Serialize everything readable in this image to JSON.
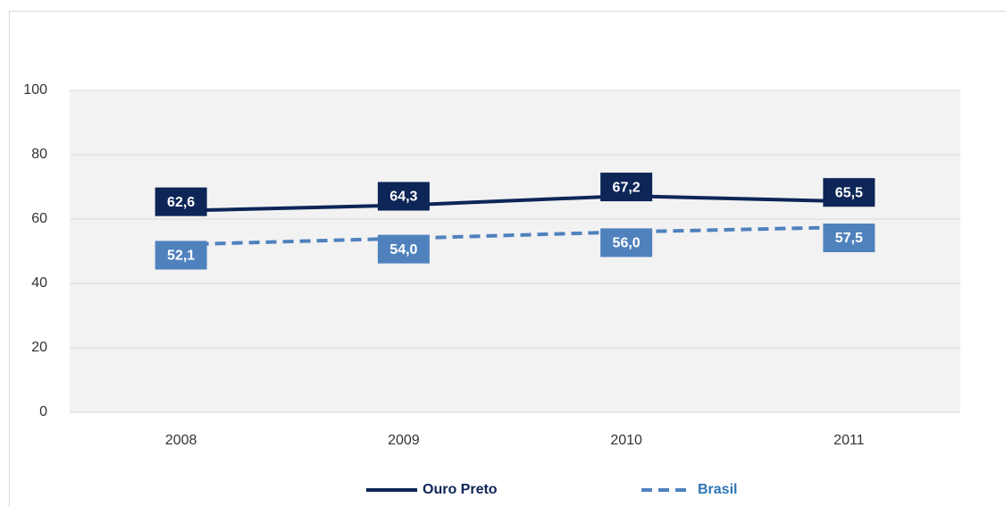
{
  "chart_data": {
    "type": "line",
    "categories": [
      "2008",
      "2009",
      "2010",
      "2011"
    ],
    "series": [
      {
        "name": "Ouro Preto",
        "color": "#0d2557",
        "dash": false,
        "values": [
          62.6,
          64.3,
          67.2,
          65.5
        ],
        "value_labels": [
          "62,6",
          "64,3",
          "67,2",
          "65,5"
        ]
      },
      {
        "name": "Brasil",
        "color": "#4f81bd",
        "dash": true,
        "values": [
          52.1,
          54.0,
          56.0,
          57.5
        ],
        "value_labels": [
          "52,1",
          "54,0",
          "56,0",
          "57,5"
        ]
      }
    ],
    "ylim": [
      0,
      100
    ],
    "yticks": [
      0,
      20,
      40,
      60,
      80,
      100
    ],
    "grid": true,
    "legend": "bottom"
  }
}
